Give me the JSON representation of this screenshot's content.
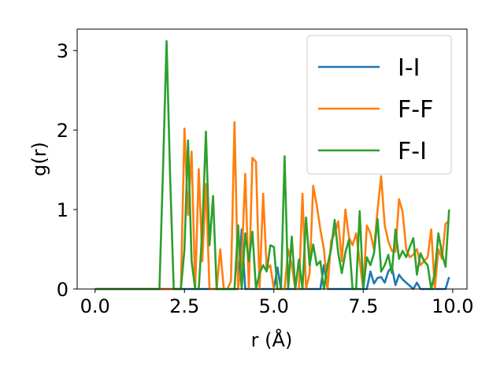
{
  "chart_data": {
    "type": "line",
    "title": "",
    "xlabel": "r (Å)",
    "ylabel": "g(r)",
    "xlim": [
      -0.5,
      10.4
    ],
    "ylim": [
      0,
      3.27
    ],
    "xticks": [
      0.0,
      2.5,
      5.0,
      7.5,
      10.0
    ],
    "xtick_labels": [
      "0.0",
      "2.5",
      "5.0",
      "7.5",
      "10.0"
    ],
    "yticks": [
      0,
      1,
      2,
      3
    ],
    "ytick_labels": [
      "0",
      "1",
      "2",
      "3"
    ],
    "grid": false,
    "legend_position": "top-right",
    "series": [
      {
        "name": "I-I",
        "color": "#1f77b4",
        "x": [
          0.0,
          4.0,
          4.1,
          4.2,
          4.3,
          5.0,
          5.1,
          5.2,
          6.3,
          6.4,
          6.5,
          7.6,
          7.7,
          7.8,
          7.9,
          8.0,
          8.1,
          8.2,
          8.3,
          8.4,
          8.5,
          8.6,
          8.9,
          9.0,
          9.1,
          9.8,
          9.9
        ],
        "y": [
          0.0,
          0.0,
          0.75,
          0.0,
          0.0,
          0.0,
          0.27,
          0.0,
          0.0,
          0.3,
          0.0,
          0.0,
          0.22,
          0.07,
          0.14,
          0.15,
          0.08,
          0.22,
          0.28,
          0.05,
          0.18,
          0.12,
          0.0,
          0.08,
          0.0,
          0.0,
          0.15
        ]
      },
      {
        "name": "F-F",
        "color": "#ff7f0e",
        "x": [
          0.0,
          2.4,
          2.5,
          2.6,
          2.7,
          2.8,
          2.9,
          3.0,
          3.1,
          3.2,
          3.3,
          3.4,
          3.5,
          3.6,
          3.7,
          3.8,
          3.9,
          4.0,
          4.1,
          4.2,
          4.3,
          4.4,
          4.5,
          4.6,
          4.7,
          4.8,
          4.9,
          5.0,
          5.1,
          5.2,
          5.3,
          5.4,
          5.5,
          5.6,
          5.7,
          5.8,
          5.9,
          6.0,
          6.1,
          6.2,
          6.3,
          6.4,
          6.5,
          6.6,
          6.7,
          6.8,
          6.9,
          7.0,
          7.1,
          7.2,
          7.3,
          7.4,
          7.5,
          7.6,
          7.7,
          7.8,
          7.9,
          8.0,
          8.1,
          8.2,
          8.3,
          8.4,
          8.5,
          8.6,
          8.7,
          8.8,
          8.9,
          9.0,
          9.1,
          9.2,
          9.3,
          9.4,
          9.5,
          9.6,
          9.7,
          9.8,
          9.9
        ],
        "y": [
          0.0,
          0.0,
          2.02,
          0.93,
          1.73,
          0.0,
          1.51,
          0.35,
          1.32,
          0.0,
          0.0,
          0.0,
          0.5,
          0.0,
          0.0,
          0.1,
          2.1,
          0.0,
          0.35,
          1.45,
          0.0,
          1.65,
          1.6,
          0.0,
          1.2,
          0.25,
          0.3,
          0.0,
          0.0,
          0.0,
          0.0,
          0.5,
          0.3,
          0.0,
          0.0,
          1.2,
          0.0,
          0.2,
          1.3,
          1.05,
          0.75,
          0.5,
          0.0,
          0.6,
          0.7,
          0.85,
          0.35,
          1.0,
          0.65,
          0.55,
          0.7,
          0.35,
          0.0,
          0.8,
          0.7,
          0.5,
          1.0,
          1.42,
          0.8,
          0.6,
          0.48,
          0.47,
          1.13,
          0.97,
          0.5,
          0.4,
          0.43,
          0.5,
          0.3,
          0.35,
          0.4,
          0.75,
          0.0,
          0.5,
          0.38,
          0.82,
          0.86
        ]
      },
      {
        "name": "F-I",
        "color": "#2ca02c",
        "x": [
          0.0,
          1.8,
          1.9,
          2.0,
          2.1,
          2.2,
          2.3,
          2.4,
          2.5,
          2.6,
          2.7,
          2.8,
          2.9,
          3.0,
          3.1,
          3.2,
          3.3,
          3.4,
          3.5,
          3.6,
          3.7,
          3.8,
          3.9,
          4.0,
          4.1,
          4.2,
          4.3,
          4.4,
          4.5,
          4.6,
          4.7,
          4.8,
          4.9,
          5.0,
          5.1,
          5.2,
          5.3,
          5.4,
          5.5,
          5.6,
          5.7,
          5.8,
          5.9,
          6.0,
          6.1,
          6.2,
          6.3,
          6.4,
          6.5,
          6.6,
          6.7,
          6.8,
          6.9,
          7.0,
          7.1,
          7.2,
          7.3,
          7.4,
          7.5,
          7.6,
          7.7,
          7.8,
          7.9,
          8.0,
          8.1,
          8.2,
          8.3,
          8.4,
          8.5,
          8.6,
          8.7,
          8.8,
          8.9,
          9.0,
          9.1,
          9.2,
          9.3,
          9.4,
          9.5,
          9.6,
          9.7,
          9.8,
          9.9
        ],
        "y": [
          0.0,
          0.0,
          1.5,
          3.12,
          1.4,
          0.0,
          0.0,
          0.0,
          0.5,
          1.87,
          0.35,
          0.0,
          0.0,
          0.75,
          1.98,
          0.55,
          1.17,
          0.0,
          0.0,
          0.0,
          0.0,
          0.0,
          0.0,
          0.8,
          0.0,
          0.7,
          0.35,
          0.72,
          0.0,
          0.2,
          0.3,
          0.22,
          0.55,
          0.53,
          0.0,
          0.0,
          1.67,
          0.0,
          0.66,
          0.0,
          0.37,
          0.0,
          0.9,
          0.3,
          0.56,
          0.3,
          0.35,
          0.0,
          0.3,
          0.5,
          0.87,
          0.45,
          0.2,
          0.46,
          0.62,
          0.0,
          0.0,
          0.98,
          0.0,
          0.4,
          0.3,
          0.45,
          0.88,
          0.22,
          0.3,
          0.43,
          0.2,
          0.75,
          0.38,
          0.48,
          0.4,
          0.53,
          0.64,
          0.18,
          0.45,
          0.35,
          0.3,
          0.0,
          0.2,
          0.7,
          0.45,
          0.28,
          1.0
        ]
      }
    ]
  }
}
